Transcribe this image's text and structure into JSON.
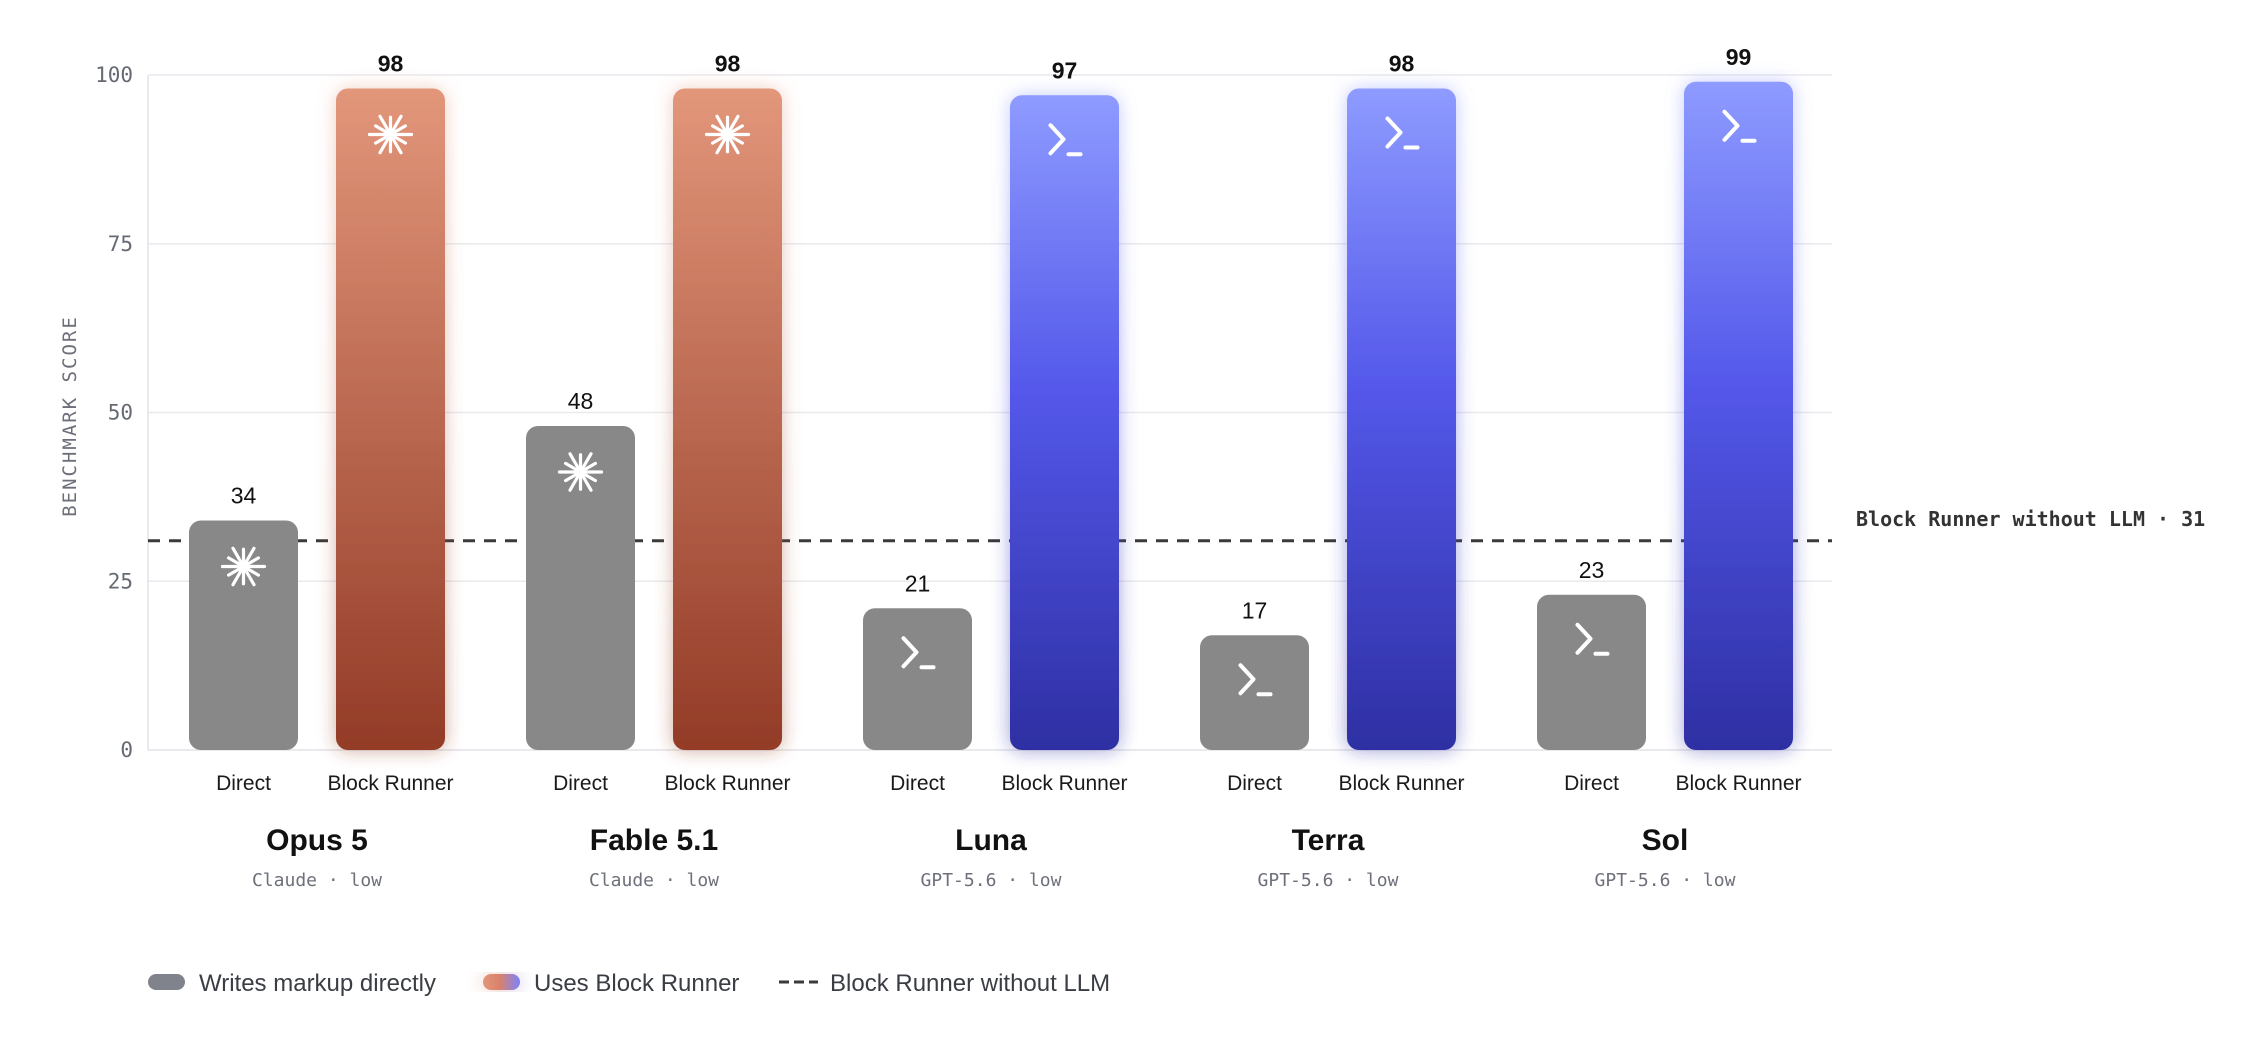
{
  "chart_data": {
    "type": "bar",
    "ylabel": "BENCHMARK SCORE",
    "ylim": [
      0,
      100
    ],
    "yticks": [
      0,
      25,
      50,
      75,
      100
    ],
    "grid": true,
    "legend_position": "bottom-left",
    "bar_labels": [
      "Direct",
      "Block Runner"
    ],
    "groups": [
      {
        "name": "Opus 5",
        "subtitle": "Claude · low",
        "family": "claude",
        "values": [
          34,
          98
        ]
      },
      {
        "name": "Fable 5.1",
        "subtitle": "Claude · low",
        "family": "claude",
        "values": [
          48,
          98
        ]
      },
      {
        "name": "Luna",
        "subtitle": "GPT-5.6 · low",
        "family": "gpt",
        "values": [
          21,
          97
        ]
      },
      {
        "name": "Terra",
        "subtitle": "GPT-5.6 · low",
        "family": "gpt",
        "values": [
          17,
          98
        ]
      },
      {
        "name": "Sol",
        "subtitle": "GPT-5.6 · low",
        "family": "gpt",
        "values": [
          23,
          99
        ]
      }
    ],
    "reference_line": {
      "value": 31,
      "label": "Block Runner without LLM · 31"
    },
    "legend": [
      {
        "key": "direct",
        "label": "Writes markup directly"
      },
      {
        "key": "runner",
        "label": "Uses Block Runner"
      },
      {
        "key": "baseline",
        "label": "Block Runner without LLM"
      }
    ],
    "colors": {
      "direct": "#888888",
      "claude_top": "#e2967a",
      "claude_bottom": "#933b27",
      "gpt_top": "#8e9bff",
      "gpt_mid": "#5458ea",
      "gpt_bottom": "#2e2fa3",
      "legend_direct": "#80838c"
    },
    "icons": {
      "claude": "asterisk-burst-icon",
      "gpt": "terminal-prompt-icon"
    }
  }
}
